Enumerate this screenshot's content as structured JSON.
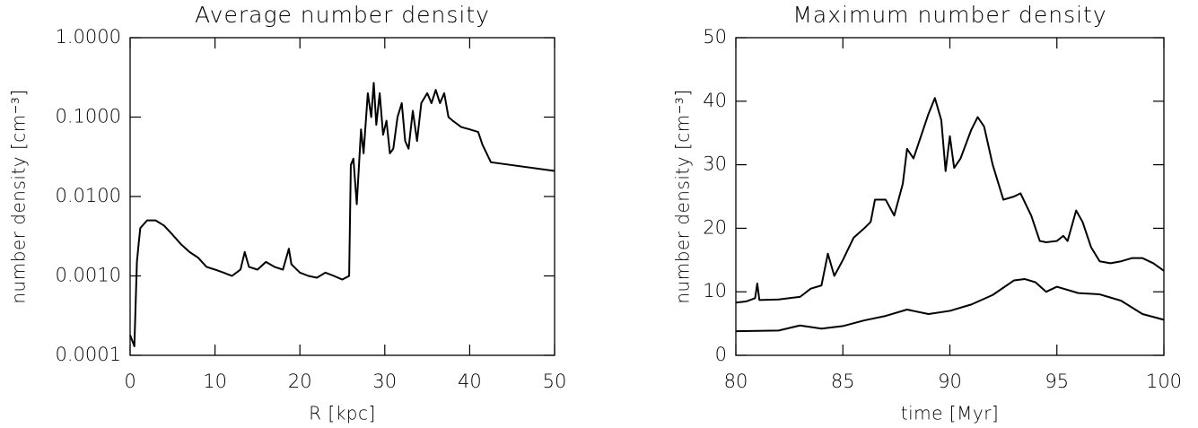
{
  "chart_data": [
    {
      "type": "line",
      "title": "Average number density",
      "x_label": "R [kpc]",
      "y_label": "number density [cm⁻³]",
      "log_y": true,
      "color": "#000000",
      "xlim": [
        0,
        50
      ],
      "xticks": [
        0,
        10,
        20,
        30,
        40,
        50
      ],
      "ylim": [
        0.0001,
        1
      ],
      "yticks": [
        {
          "value": 0.0001,
          "label": "0.0001"
        },
        {
          "value": 0.001,
          "label": "0.0010"
        },
        {
          "value": 0.01,
          "label": "0.0100"
        },
        {
          "value": 0.1,
          "label": "0.1000"
        },
        {
          "value": 1,
          "label": "1.0000"
        }
      ],
      "x": [
        0,
        0.5,
        0.8,
        1.0,
        1.2,
        2,
        3,
        4,
        5,
        6,
        7,
        8,
        9,
        10,
        11,
        12,
        13,
        13.5,
        14,
        15,
        16,
        17,
        18,
        18.7,
        19,
        20,
        21,
        22,
        23,
        24,
        25,
        25.8,
        26,
        26.3,
        26.7,
        27.2,
        27.5,
        28,
        28.4,
        28.7,
        29,
        29.4,
        29.8,
        30.2,
        30.6,
        31,
        31.5,
        32,
        32.4,
        32.8,
        33.3,
        33.8,
        34.3,
        35,
        35.5,
        36,
        36.5,
        37,
        37.5,
        38,
        39,
        40,
        41,
        41.5,
        42.5,
        50
      ],
      "values": [
        0.00018,
        0.00013,
        0.0015,
        0.0025,
        0.004,
        0.005,
        0.005,
        0.0043,
        0.0033,
        0.0025,
        0.002,
        0.0017,
        0.0013,
        0.0012,
        0.0011,
        0.001,
        0.0012,
        0.002,
        0.0013,
        0.0012,
        0.0015,
        0.0013,
        0.0012,
        0.0022,
        0.0014,
        0.0011,
        0.001,
        0.00095,
        0.0011,
        0.001,
        0.0009,
        0.001,
        0.025,
        0.03,
        0.008,
        0.07,
        0.035,
        0.2,
        0.1,
        0.27,
        0.08,
        0.2,
        0.06,
        0.09,
        0.035,
        0.04,
        0.1,
        0.15,
        0.05,
        0.04,
        0.12,
        0.05,
        0.15,
        0.2,
        0.15,
        0.22,
        0.15,
        0.2,
        0.1,
        0.09,
        0.075,
        0.07,
        0.065,
        0.045,
        0.027,
        0.021
      ]
    },
    {
      "type": "line",
      "title": "Maximum number density",
      "x_label": "time [Myr]",
      "y_label": "number density [cm⁻³]",
      "log_y": false,
      "xlim": [
        80,
        100
      ],
      "xticks": [
        80,
        85,
        90,
        95,
        100
      ],
      "ylim": [
        0,
        50
      ],
      "yticks": [
        0,
        10,
        20,
        30,
        40,
        50
      ],
      "series": [
        {
          "color": "#000000",
          "x": [
            80,
            80.5,
            80.9,
            81,
            81.1,
            82,
            83,
            83.5,
            84,
            84.3,
            84.6,
            85,
            85.5,
            86,
            86.3,
            86.5,
            87,
            87.4,
            87.8,
            88,
            88.3,
            88.6,
            89,
            89.3,
            89.6,
            89.8,
            90,
            90.2,
            90.5,
            91,
            91.3,
            91.6,
            92,
            92.5,
            93,
            93.3,
            93.8,
            94.2,
            94.5,
            95,
            95.3,
            95.5,
            95.9,
            96.2,
            96.6,
            97,
            97.5,
            98,
            98.5,
            99,
            99.5,
            100
          ],
          "values": [
            8.3,
            8.5,
            9,
            11.3,
            8.7,
            8.8,
            9.2,
            10.5,
            11,
            16,
            12.5,
            15,
            18.5,
            20,
            21,
            24.5,
            24.5,
            22,
            27,
            32.5,
            31,
            34,
            38,
            40.5,
            37,
            29,
            34.5,
            29.5,
            31,
            35.5,
            37.5,
            36,
            30,
            24.5,
            25,
            25.5,
            22,
            18,
            17.8,
            18,
            18.8,
            18,
            22.8,
            21,
            17,
            14.8,
            14.5,
            14.8,
            15.3,
            15.3,
            14.5,
            13.3
          ]
        },
        {
          "color": "#000000",
          "x": [
            80,
            82,
            83,
            84,
            85,
            86,
            87,
            88,
            89,
            90,
            91,
            92,
            93,
            93.5,
            94,
            94.5,
            95,
            96,
            97,
            98,
            99,
            100
          ],
          "values": [
            3.8,
            3.9,
            4.7,
            4.2,
            4.6,
            5.5,
            6.2,
            7.2,
            6.5,
            7.0,
            8.0,
            9.5,
            11.8,
            12,
            11.5,
            10,
            10.8,
            9.8,
            9.6,
            8.6,
            6.5,
            5.6
          ]
        }
      ]
    }
  ]
}
